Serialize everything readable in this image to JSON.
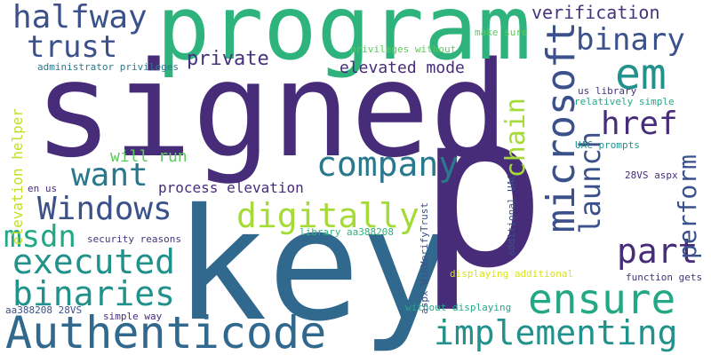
{
  "colors": {
    "background": "#ffffff",
    "dark_purple": "#472c7a",
    "purple": "#46337e",
    "indigo": "#3b518b",
    "blue": "#31688e",
    "teal_blue": "#2a788e",
    "teal": "#21918c",
    "green_teal": "#22a884",
    "green": "#2eb37c",
    "light_green": "#5ec962",
    "lime": "#a5db36",
    "yellow_green": "#c2df23",
    "yellow": "#d8e219"
  },
  "words": {
    "signed": "signed",
    "key": "key",
    "p": "p",
    "program": "program",
    "em": "em",
    "authenticode": "Authenticode",
    "ensure": "ensure",
    "microsoft": "microsoft",
    "implementing": "implementing",
    "binaries": "binaries",
    "digitally": "digitally",
    "executed": "executed",
    "company": "company",
    "part": "part",
    "windows": "Windows",
    "halfway": "halfway",
    "href": "href",
    "trust": "trust",
    "binary": "binary",
    "want": "want",
    "msdn": "msdn",
    "launch": "launch",
    "perform": "perform",
    "chain": "chain",
    "verification": "verification",
    "private": "private",
    "elevated_mode": "elevated mode",
    "process_elevation": "process elevation",
    "elevation_helper": "elevation helper",
    "will_run": "will run",
    "administrator_privileges": "administrator privileges",
    "privileges_without": "privileges without",
    "make_sure": "make sure",
    "us_library": "us library",
    "relatively_simple": "relatively simple",
    "uac_prompts": "UAC prompts",
    "vs_aspx": "28VS aspx",
    "additional_uac": "additional UAC",
    "aspx_winverifytrust": "aspx WinVerifyTrust",
    "library_aa388208": "library aa388208",
    "en_us": "en us",
    "security_reasons": "security reasons",
    "displaying_additional": "displaying additional",
    "function_gets": "function gets",
    "aa388208_28vs": "aa388208 28VS",
    "simple_way": "simple way",
    "without_displaying": "without displaying"
  }
}
